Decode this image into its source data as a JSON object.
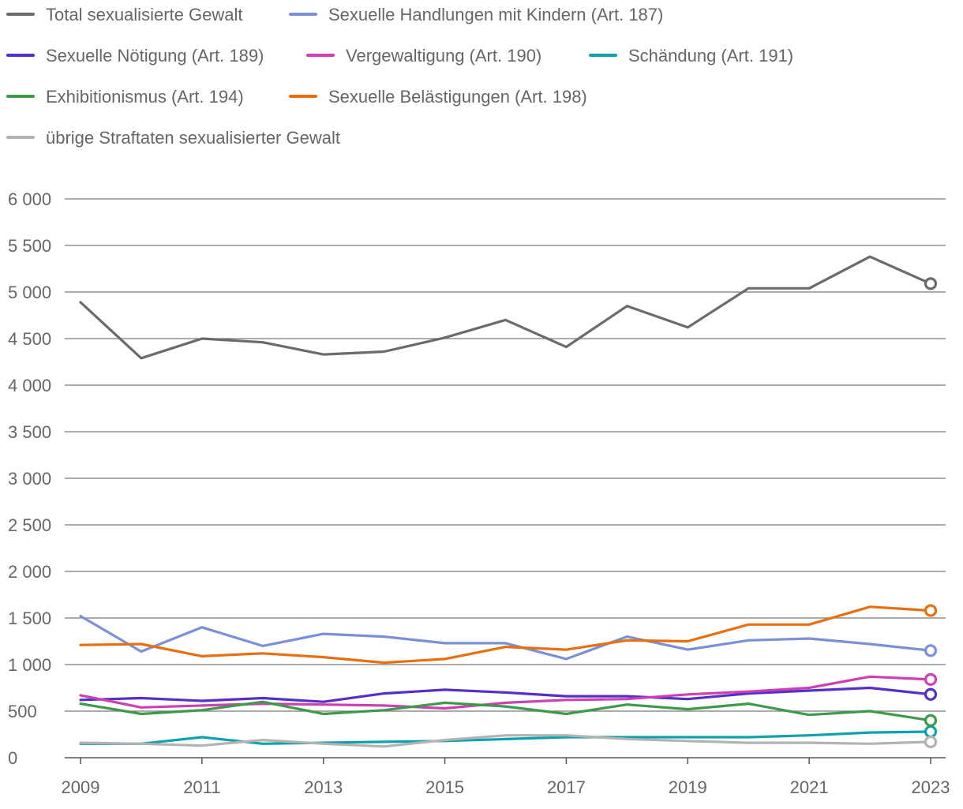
{
  "chart_data": {
    "type": "line",
    "title": "",
    "xlabel": "",
    "ylabel": "",
    "x": [
      2009,
      2010,
      2011,
      2012,
      2013,
      2014,
      2015,
      2016,
      2017,
      2018,
      2019,
      2020,
      2021,
      2022,
      2023
    ],
    "x_tick_labels": [
      "2009",
      "2011",
      "2013",
      "2015",
      "2017",
      "2019",
      "2021",
      "2023"
    ],
    "y_tick_labels": [
      "0",
      "500",
      "1 000",
      "1 500",
      "2 000",
      "2 500",
      "3 000",
      "3 500",
      "4 000",
      "4 500",
      "5 000",
      "5 500",
      "6 000"
    ],
    "ylim": [
      0,
      6000
    ],
    "grid": true,
    "legend_position": "top",
    "end_markers": "hollow circle on last point",
    "series": [
      {
        "name": "Total sexualisierte Gewalt",
        "color": "#6b6b6b",
        "values": [
          4890,
          4290,
          4500,
          4460,
          4330,
          4360,
          4510,
          4700,
          4410,
          4850,
          4620,
          5040,
          5040,
          5380,
          5090
        ]
      },
      {
        "name": "Sexuelle Handlungen mit Kindern (Art. 187)",
        "color": "#7b90d6",
        "values": [
          1520,
          1140,
          1400,
          1200,
          1330,
          1300,
          1230,
          1230,
          1060,
          1300,
          1160,
          1260,
          1280,
          1220,
          1150
        ]
      },
      {
        "name": "Sexuelle Nötigung (Art. 189)",
        "color": "#5230c9",
        "values": [
          620,
          640,
          610,
          640,
          600,
          690,
          730,
          700,
          660,
          660,
          630,
          690,
          720,
          750,
          680
        ]
      },
      {
        "name": "Vergewaltigung (Art. 190)",
        "color": "#cf3fb4",
        "values": [
          670,
          540,
          560,
          580,
          570,
          560,
          530,
          590,
          620,
          630,
          680,
          710,
          750,
          870,
          840
        ]
      },
      {
        "name": "Schändung (Art. 191)",
        "color": "#0ea1ad",
        "values": [
          150,
          150,
          220,
          150,
          160,
          170,
          180,
          200,
          220,
          220,
          220,
          220,
          240,
          270,
          280
        ]
      },
      {
        "name": "Exhibitionismus (Art. 194)",
        "color": "#3d9a4a",
        "values": [
          580,
          470,
          510,
          600,
          470,
          510,
          590,
          550,
          470,
          570,
          520,
          580,
          460,
          500,
          400
        ]
      },
      {
        "name": "Sexuelle Belästigungen (Art. 198)",
        "color": "#e86f10",
        "values": [
          1210,
          1220,
          1090,
          1120,
          1080,
          1020,
          1060,
          1190,
          1160,
          1260,
          1250,
          1430,
          1430,
          1620,
          1580
        ]
      },
      {
        "name": "übrige Straftaten sexualisierter Gewalt",
        "color": "#b3b3b3",
        "values": [
          160,
          150,
          130,
          190,
          150,
          120,
          190,
          240,
          240,
          200,
          180,
          160,
          160,
          150,
          170
        ]
      }
    ]
  },
  "style": {
    "grid_color": "#7a7a7a",
    "baseline_color": "#555555",
    "text_color": "#666666"
  }
}
